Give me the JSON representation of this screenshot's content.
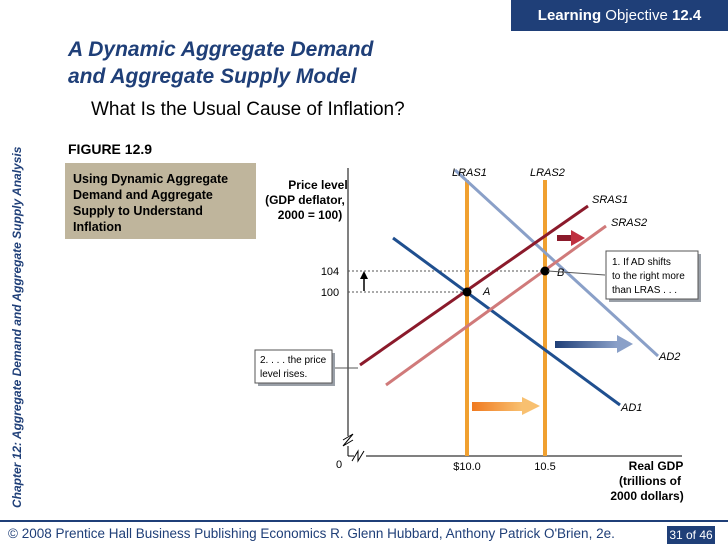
{
  "badge": {
    "prefix": "Learning",
    "text": "Objective",
    "number": "12.4"
  },
  "side_title": "Chapter 12:  Aggregate Demand and Aggregate Supply Analysis",
  "title_line1": "A Dynamic Aggregate Demand",
  "title_line2": "and Aggregate Supply Model",
  "question": "What Is the Usual Cause of Inflation?",
  "figure_label": "FIGURE 12.9",
  "caption": "Using Dynamic Aggregate Demand and Aggregate Supply to Understand Inflation",
  "footer": "© 2008 Prentice Hall Business Publishing   Economics  R. Glenn Hubbard, Anthony Patrick O'Brien, 2e.",
  "page": "31 of 46",
  "diagram": {
    "y_axis_label": [
      "Price level",
      "(GDP deflator,",
      "2000 = 100)"
    ],
    "x_axis_label": [
      "Real GDP",
      "(trillions of",
      "2000 dollars)"
    ],
    "origin": "0",
    "y_ticks": [
      "104",
      "100"
    ],
    "x_ticks": [
      "$10.0",
      "10.5"
    ],
    "curves": {
      "lras1": "LRAS1",
      "lras2": "LRAS2",
      "sras1": "SRAS1",
      "sras2": "SRAS2",
      "ad1": "AD1",
      "ad2": "AD2"
    },
    "points": {
      "a": "A",
      "b": "B"
    },
    "note1": [
      "1.  If AD shifts",
      "to the right more",
      "than LRAS . . ."
    ],
    "note2": [
      "2.  . . . the price",
      "level rises."
    ],
    "colors": {
      "lras": "#f0a030",
      "sras1": "#8b1a2b",
      "sras2": "#d07a7a",
      "ad1": "#1f4f8f",
      "ad2": "#8aa0c8",
      "accent": "#1f3f78"
    }
  }
}
